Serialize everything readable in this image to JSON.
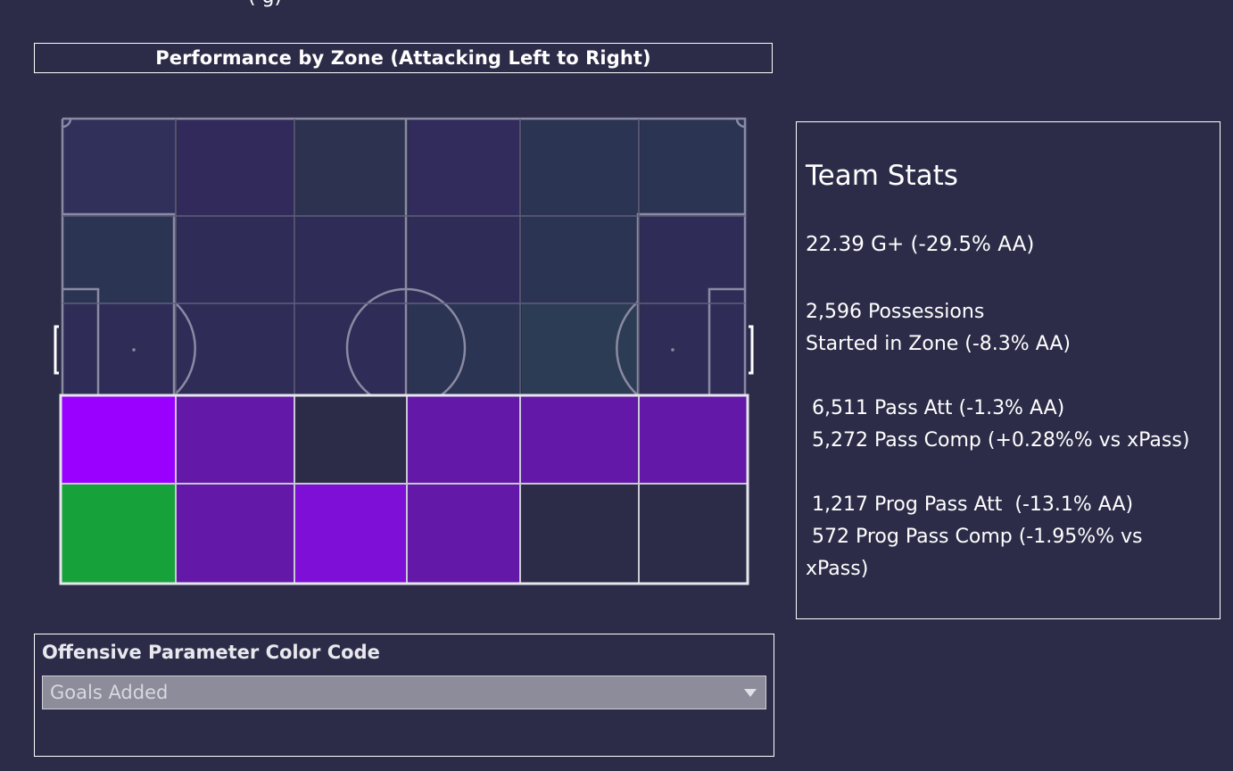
{
  "header": {
    "clipped_text": "·  ·  (              g)"
  },
  "title": "Performance by Zone (Attacking Left to Right)",
  "colors": {
    "background": "#2c2c48",
    "cell_strong_purple": "#9a00ff",
    "cell_mid_purple": "#6318a8",
    "cell_bright_purple": "#7e0fd6",
    "cell_green": "#16a13a",
    "cell_neutral": "#2c2c48"
  },
  "zone_grid": {
    "rows": [
      [
        "strong_purple",
        "mid_purple",
        "neutral",
        "mid_purple",
        "mid_purple",
        "mid_purple"
      ],
      [
        "green",
        "mid_purple",
        "bright_purple",
        "mid_purple",
        "neutral",
        "neutral"
      ]
    ]
  },
  "team_stats": {
    "title": "Team Stats",
    "gplus": "22.39 G+ (-29.5% AA)",
    "possessions_line1": "2,596 Possessions",
    "possessions_line2": "Started in Zone (-8.3% AA)",
    "pass_att": " 6,511 Pass Att (-1.3% AA)",
    "pass_comp": " 5,272 Pass Comp (+0.28%% vs xPass)",
    "prog_pass_att": " 1,217 Prog Pass Att  (-13.1% AA)",
    "prog_pass_comp_line1": " 572 Prog Pass Comp (-1.95%% vs",
    "prog_pass_comp_line2": "xPass)"
  },
  "filter": {
    "label": "Offensive Parameter Color Code",
    "selected": "Goals Added",
    "icon": "chevron-down-icon"
  }
}
